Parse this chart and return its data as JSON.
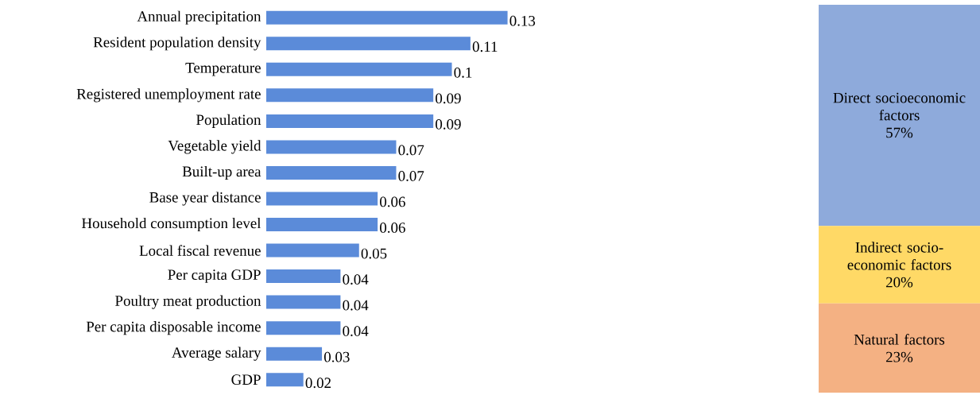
{
  "chart_data": [
    {
      "type": "bar",
      "orientation": "horizontal",
      "data_labels": true,
      "color": "#5b8bd9",
      "categories": [
        "Annual precipitation",
        "Resident population density",
        "Temperature",
        "Registered unemployment rate",
        "Population",
        "Vegetable yield",
        "Built-up area",
        "Base year distance",
        "Household consumption level",
        "Local fiscal revenue",
        "Per capita GDP",
        "Poultry meat production",
        "Per capita disposable income",
        "Average salary",
        "GDP"
      ],
      "values": [
        0.13,
        0.11,
        0.1,
        0.09,
        0.09,
        0.07,
        0.07,
        0.06,
        0.06,
        0.05,
        0.04,
        0.04,
        0.04,
        0.03,
        0.02
      ]
    },
    {
      "type": "bar",
      "stacked": true,
      "categories": [
        null
      ],
      "series": [
        {
          "name": "Natural factors",
          "color": "#f4b183",
          "values": [
            23
          ],
          "value_labels": [
            "23%"
          ]
        },
        {
          "name": "Indirect socio-economic factors",
          "color": "#ffd966",
          "values": [
            20
          ],
          "value_labels": [
            "20%"
          ]
        },
        {
          "name": "Direct socioeconomic factors",
          "color": "#8eaadb",
          "values": [
            57
          ],
          "value_labels": [
            "57%"
          ]
        }
      ]
    }
  ]
}
